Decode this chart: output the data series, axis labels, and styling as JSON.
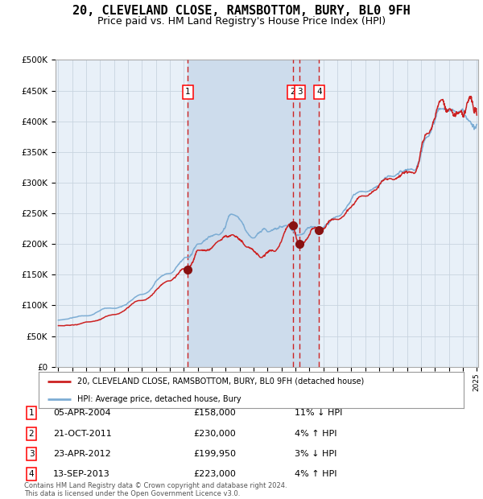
{
  "title": "20, CLEVELAND CLOSE, RAMSBOTTOM, BURY, BL0 9FH",
  "subtitle": "Price paid vs. HM Land Registry's House Price Index (HPI)",
  "title_fontsize": 11,
  "subtitle_fontsize": 9,
  "ylim": [
    0,
    500000
  ],
  "yticks": [
    0,
    50000,
    100000,
    150000,
    200000,
    250000,
    300000,
    350000,
    400000,
    450000,
    500000
  ],
  "ytick_labels": [
    "£0",
    "£50K",
    "£100K",
    "£150K",
    "£200K",
    "£250K",
    "£300K",
    "£350K",
    "£400K",
    "£450K",
    "£500K"
  ],
  "x_start_year": 1995,
  "x_end_year": 2025,
  "hpi_color": "#7dadd4",
  "price_color": "#cc2222",
  "marker_color": "#881111",
  "background_color": "#ffffff",
  "plot_bg_color": "#e8f0f8",
  "grid_color": "#c8d4e0",
  "shade_color": "#cddcec",
  "vline_color": "#cc2222",
  "transactions": [
    {
      "id": 1,
      "date": "05-APR-2004",
      "year": 2004.27,
      "price": 158000,
      "pct": "11%",
      "dir": "↓",
      "label": "1"
    },
    {
      "id": 2,
      "date": "21-OCT-2011",
      "year": 2011.8,
      "price": 230000,
      "pct": "4%",
      "dir": "↑",
      "label": "2"
    },
    {
      "id": 3,
      "date": "23-APR-2012",
      "year": 2012.31,
      "price": 199950,
      "pct": "3%",
      "dir": "↓",
      "label": "3"
    },
    {
      "id": 4,
      "date": "13-SEP-2013",
      "year": 2013.7,
      "price": 223000,
      "pct": "4%",
      "dir": "↑",
      "label": "4"
    }
  ],
  "legend_line1": "20, CLEVELAND CLOSE, RAMSBOTTOM, BURY, BL0 9FH (detached house)",
  "legend_line2": "HPI: Average price, detached house, Bury",
  "footer": "Contains HM Land Registry data © Crown copyright and database right 2024.\nThis data is licensed under the Open Government Licence v3.0."
}
